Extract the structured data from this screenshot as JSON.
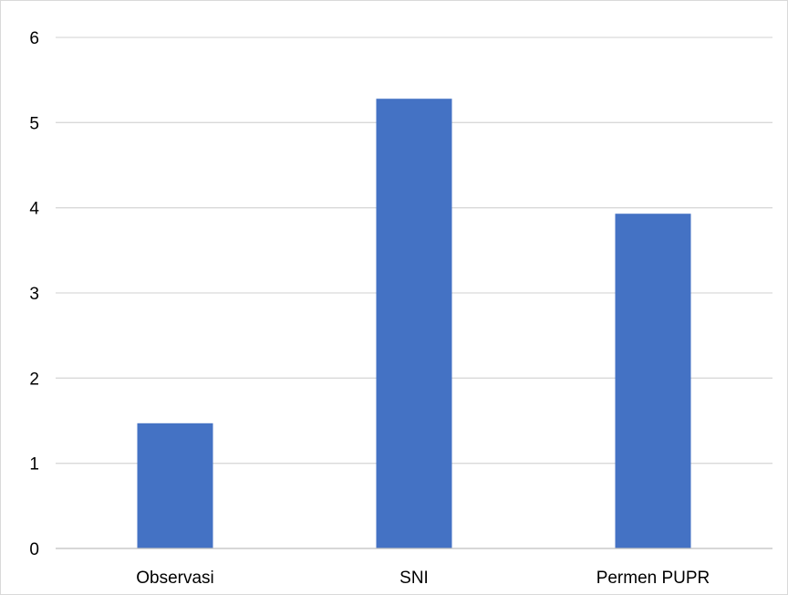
{
  "chart_data": {
    "type": "bar",
    "categories": [
      "Observasi",
      "SNI",
      "Permen PUPR"
    ],
    "values": [
      1.47,
      5.28,
      3.93
    ],
    "ylim": [
      0,
      6
    ],
    "yticks": [
      0,
      1,
      2,
      3,
      4,
      5,
      6
    ],
    "grid": true,
    "legend": "none",
    "colors": {
      "bar": "#4472c4",
      "grid": "#d9d9d9",
      "axis": "#bfbfbf",
      "text": "#000000"
    }
  }
}
